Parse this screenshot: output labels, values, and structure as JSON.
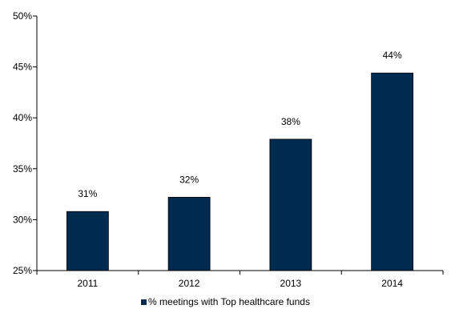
{
  "chart_data": {
    "type": "bar",
    "title": "",
    "xlabel": "",
    "ylabel": "",
    "categories": [
      "2011",
      "2012",
      "2013",
      "2014"
    ],
    "series": [
      {
        "name": "% meetings with Top healthcare funds",
        "values": [
          30.8,
          32.2,
          37.9,
          44.4
        ],
        "labels": [
          "31%",
          "32%",
          "38%",
          "44%"
        ],
        "color": "#002B50"
      }
    ],
    "ylim": [
      25,
      50
    ],
    "yticks": [
      25,
      30,
      35,
      40,
      45,
      50
    ],
    "ytick_labels": [
      "25%",
      "30%",
      "35%",
      "40%",
      "45%",
      "50%"
    ],
    "grid": false,
    "legend_position": "bottom"
  }
}
